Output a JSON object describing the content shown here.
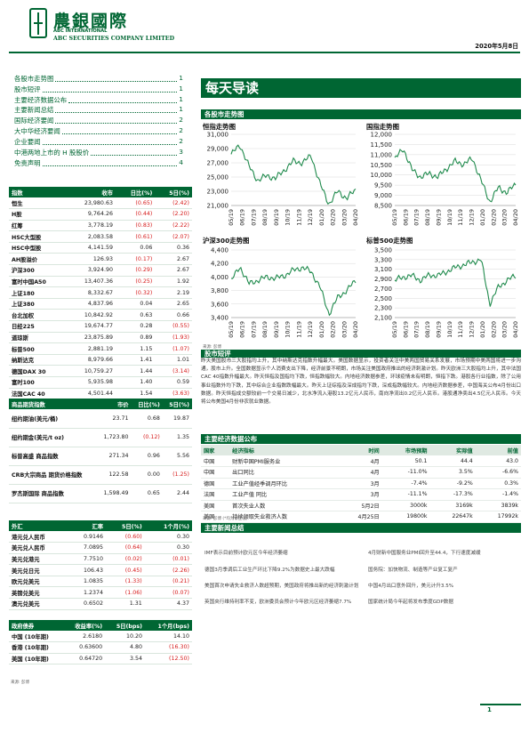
{
  "header": {
    "company_cn": "農銀國際",
    "company_en1": "ABC INTERNATIONAL",
    "company_en2": "ABC SECURITIES COMPANY LIMITED",
    "date": "2020年5月8日"
  },
  "toc": [
    {
      "title": "各股市走势图",
      "page": "1"
    },
    {
      "title": "股市短评",
      "page": "1"
    },
    {
      "title": "主要经济数据公布",
      "page": "1"
    },
    {
      "title": "主要新闻总结",
      "page": "1"
    },
    {
      "title": "国际经济要闻",
      "page": "2"
    },
    {
      "title": "大中华经济要闻",
      "page": "2"
    },
    {
      "title": "企业要闻",
      "page": "2"
    },
    {
      "title": "中港两地上市的 H 股股价",
      "page": "3"
    },
    {
      "title": "免责声明",
      "page": "4"
    }
  ],
  "indices_table": {
    "headers": [
      "指数",
      "收市",
      "日比(%)",
      "5日(%)"
    ],
    "rows": [
      [
        "恒生",
        "23,980.63",
        "(0.65)",
        "(2.42)"
      ],
      [
        "H股",
        "9,764.26",
        "(0.44)",
        "(2.20)"
      ],
      [
        "红筹",
        "3,778.19",
        "(0.83)",
        "(2.22)"
      ],
      [
        "HSC大型股",
        "2,083.58",
        "(0.61)",
        "(2.07)"
      ],
      [
        "HSC中型股",
        "4,141.59",
        "0.06",
        "0.36"
      ],
      [
        "AH股溢价",
        "126.93",
        "(0.17)",
        "2.67"
      ],
      [
        "沪深300",
        "3,924.90",
        "(0.29)",
        "2.67"
      ],
      [
        "富时中国A50",
        "13,407.36",
        "(0.25)",
        "1.92"
      ],
      [
        "上证180",
        "8,332.67",
        "(0.32)",
        "2.19"
      ],
      [
        "上证380",
        "4,837.96",
        "0.04",
        "2.65"
      ],
      [
        "台北加权",
        "10,842.92",
        "0.63",
        "0.66"
      ],
      [
        "日经225",
        "19,674.77",
        "0.28",
        "(0.55)"
      ],
      [
        "道琼斯",
        "23,875.89",
        "0.89",
        "(1.93)"
      ],
      [
        "标普500",
        "2,881.19",
        "1.15",
        "(1.07)"
      ],
      [
        "纳斯达克",
        "8,979.66",
        "1.41",
        "1.01"
      ],
      [
        "德国DAX 30",
        "10,759.27",
        "1.44",
        "(3.14)"
      ],
      [
        "富时100",
        "5,935.98",
        "1.40",
        "0.59"
      ],
      [
        "法国CAC 40",
        "4,501.44",
        "1.54",
        "(3.63)"
      ]
    ]
  },
  "commodities_table": {
    "headers": [
      "商品期货指数",
      "市价",
      "日比(%)",
      "5日(%)"
    ],
    "rows": [
      [
        "纽约期油(美元/桶)",
        "23.71",
        "0.68",
        "19.87"
      ],
      [
        "纽约期金(美元/t oz)",
        "1,723.80",
        "(0.12)",
        "1.35"
      ],
      [
        "标普高盛 商品指数",
        "271.34",
        "0.96",
        "5.56"
      ],
      [
        "CRB大宗商品 期货价格指数",
        "122.58",
        "0.00",
        "(1.25)"
      ],
      [
        "罗杰斯国际 商品指数",
        "1,598.49",
        "0.65",
        "2.44"
      ]
    ]
  },
  "fx_table": {
    "headers": [
      "外汇",
      "汇率",
      "5日(%)",
      "1个月(%)"
    ],
    "rows": [
      [
        "港元兑人民币",
        "0.9146",
        "(0.60)",
        "0.30"
      ],
      [
        "美元兑人民币",
        "7.0895",
        "(0.64)",
        "0.30"
      ],
      [
        "美元兑港元",
        "7.7510",
        "(0.02)",
        "(0.01)"
      ],
      [
        "美元兑日元",
        "106.43",
        "(0.45)",
        "(2.26)"
      ],
      [
        "欧元兑美元",
        "1.0835",
        "(1.33)",
        "(0.21)"
      ],
      [
        "英镑兑美元",
        "1.2374",
        "(1.06)",
        "(0.07)"
      ],
      [
        "澳元兑美元",
        "0.6502",
        "1.31",
        "4.37"
      ]
    ]
  },
  "bond_table": {
    "headers": [
      "政府债券",
      "收益率(%)",
      "5日(bps)",
      "1个月(bps)"
    ],
    "rows": [
      [
        "中国 (10年期)",
        "2.6180",
        "10.20",
        "14.10"
      ],
      [
        "香港 (10年期)",
        "0.63600",
        "4.80",
        "(16.30)"
      ],
      [
        "美国 (10年期)",
        "0.64720",
        "3.54",
        "(12.50)"
      ]
    ]
  },
  "source_left": "来源: 彭博",
  "main_title": "每天导读",
  "charts_section": "各股市走势图",
  "chart_source": "来源: 彭博",
  "charts": [
    {
      "title": "恒指走势图",
      "yticks": [
        "31,000",
        "29,000",
        "27,000",
        "25,000",
        "23,000",
        "21,000"
      ]
    },
    {
      "title": "国指走势图",
      "yticks": [
        "12,000",
        "11,500",
        "11,000",
        "10,500",
        "10,000",
        "9,500",
        "9,000",
        "8,500"
      ]
    },
    {
      "title": "沪深300走势图",
      "yticks": [
        "4,400",
        "4,200",
        "4,000",
        "3,800",
        "3,600",
        "3,400"
      ]
    },
    {
      "title": "标普500走势图",
      "yticks": [
        "3,500",
        "3,300",
        "3,100",
        "2,900",
        "2,700",
        "2,500",
        "2,300",
        "2,100"
      ]
    }
  ],
  "xticks": [
    "05/19",
    "06/19",
    "07/19",
    "08/19",
    "09/19",
    "10/19",
    "11/19",
    "12/19",
    "01/20",
    "02/20",
    "03/20",
    "04/20"
  ],
  "commentary": {
    "heading": "股市短评",
    "text": "昨天美国股市三大股指均上升，其中纳斯达克指数升幅最大。美国数据显示，投资者关注中美两国贸易关系发展，市场预期中美两国将进一步沟通，股市上升。全国数据显示个人消费支出下降，经济前景不明朗，市场关注美国政府推出的经济刺激计划。昨天欧洲三大股指均上升，其中法国CAC 40指数升幅最大。昨天恒指及国指均下跌，恒指跌幅较大。内地经济数据参差，环球疫情未有明朗，恒指下跌。港股各行业指数，除了公用事业指数外均下跌，其中综合企业指数跌幅最大。昨天上证综指及深成指均下跌，深成指跌幅较大。内地经济数据参差，中国海关公布4月份出口数据。昨天恒指成交额较前一个交易日减少，北水净流入港股13.2亿元人民币，南向净流出0.2亿元人民币。港股通净卖出4.5亿元人民币。今天将公布美国4月份非农就业数据。"
  },
  "econ": {
    "heading": "主要经济数据公布",
    "headers": [
      "国家",
      "经济指标",
      "时间",
      "市场预期",
      "实际值",
      "前值"
    ],
    "rows": [
      [
        "中国",
        "财新中国PMI服务业",
        "4月",
        "50.1",
        "44.4",
        "43.0"
      ],
      [
        "中国",
        "出口同比",
        "4月",
        "-11.0%",
        "3.5%",
        "-6.6%"
      ],
      [
        "德国",
        "工业产值经季调月环比",
        "3月",
        "-7.4%",
        "-9.2%",
        "0.3%"
      ],
      [
        "法国",
        "工业产值 同比",
        "3月",
        "-11.1%",
        "-17.3%",
        "-1.4%"
      ],
      [
        "美国",
        "首次失业人数",
        "5月2日",
        "3000k",
        "3169k",
        "3839k"
      ],
      [
        "美国",
        "持续领取失业救济人数",
        "4月25日",
        "19800k",
        "22647k",
        "17992k"
      ]
    ],
    "source": "来源: 彭博 (*均为修正值)"
  },
  "news": {
    "heading": "主要新闻总结",
    "items": [
      "IMF表示目前预计欧元区今年经济萎缩",
      "4月财新中国服务业PMI回升至44.4，下行速度减缓",
      "德国3月季调后工业生产环比下降9.2%为数据史上最大跌幅",
      "国务院：加快物流、制造等产业复工复产",
      "美国首次申请失业救济人数超预期，美国政府将推出新的经济刺激计划",
      "中国4月出口意外回升，美元计升3.5%",
      "英国央行维持利率不变，欧洲委员会预计今年欧元区经济萎缩7.7%",
      "国家统计局今年起将发布季度GDP数据"
    ]
  },
  "page_number": "1"
}
